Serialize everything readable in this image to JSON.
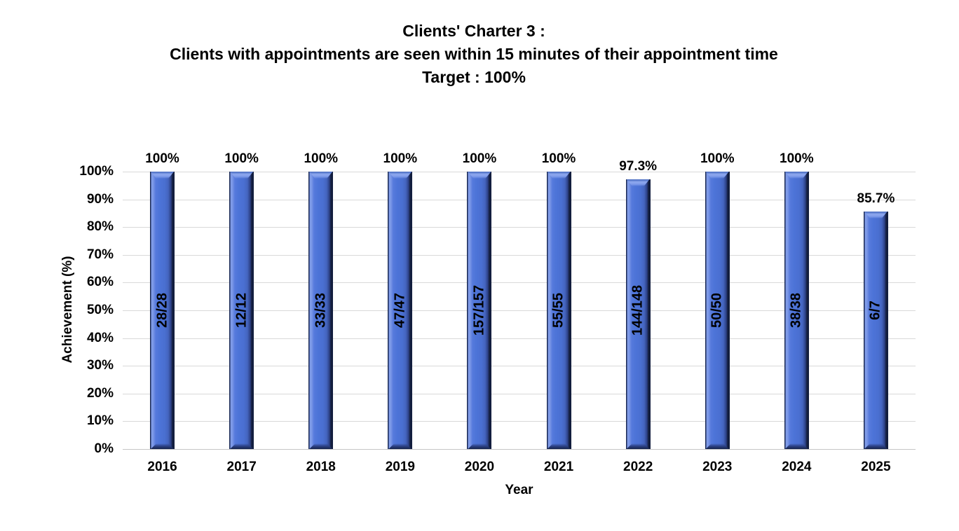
{
  "title": {
    "line1": "Clients' Charter 3 :",
    "line2": "Clients with appointments are seen within 15 minutes of their appointment time",
    "line3": "Target : 100%"
  },
  "axes": {
    "y_title": "Achievement (%)",
    "x_title": "Year",
    "y_tick_labels": [
      "0%",
      "10%",
      "20%",
      "30%",
      "40%",
      "50%",
      "60%",
      "70%",
      "80%",
      "90%",
      "100%"
    ]
  },
  "colors": {
    "bar_main": "#4D74D8",
    "bar_highlight": "#8FA9EF",
    "bar_edge_dark": "#131E3E",
    "gridline": "#D9D9D9",
    "axis_line": "#C6C6C6",
    "text": "#000000",
    "background": "#FFFFFF"
  },
  "chart_data": {
    "type": "bar",
    "title": "Clients' Charter 3 : Clients with appointments are seen within 15 minutes of their appointment time — Target : 100%",
    "xlabel": "Year",
    "ylabel": "Achievement (%)",
    "ylim": [
      0,
      100
    ],
    "y_tick_interval": 10,
    "grid": true,
    "legend": false,
    "categories": [
      "2016",
      "2017",
      "2018",
      "2019",
      "2020",
      "2021",
      "2022",
      "2023",
      "2024",
      "2025"
    ],
    "values": [
      100,
      100,
      100,
      100,
      100,
      100,
      97.3,
      100,
      100,
      85.7
    ],
    "value_labels": [
      "100%",
      "100%",
      "100%",
      "100%",
      "100%",
      "100%",
      "97.3%",
      "100%",
      "100%",
      "85.7%"
    ],
    "bar_inner_labels": [
      "28/28",
      "12/12",
      "33/33",
      "47/47",
      "157/157",
      "55/55",
      "144/148",
      "50/50",
      "38/38",
      "6/7"
    ]
  }
}
